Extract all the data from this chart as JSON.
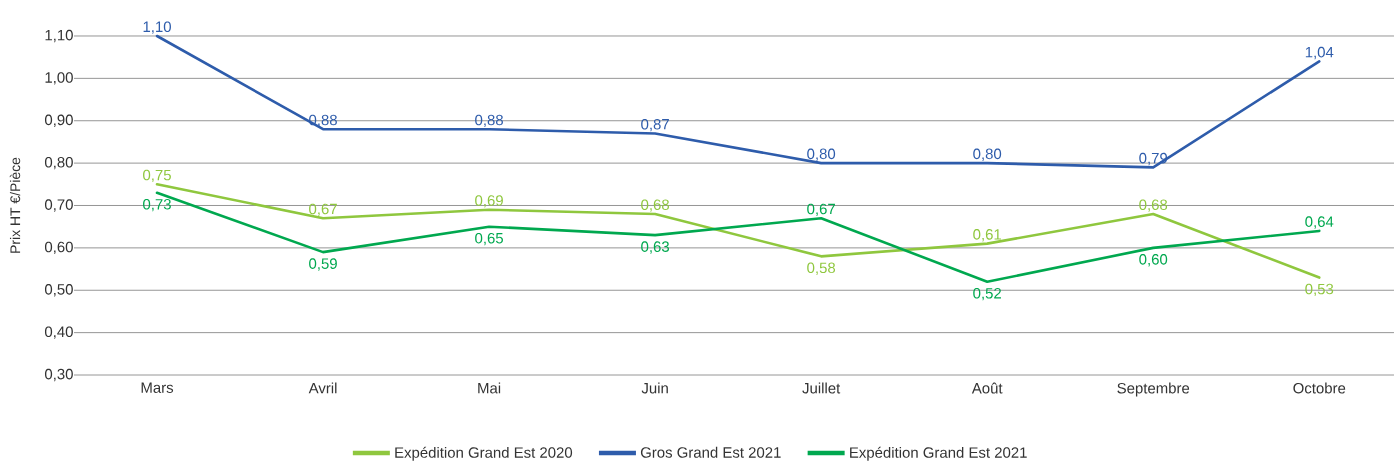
{
  "chart_data": {
    "type": "line",
    "ylabel": "Prix HT €/Pièce",
    "categories": [
      "Mars",
      "Avril",
      "Mai",
      "Juin",
      "Juillet",
      "Août",
      "Septembre",
      "Octobre"
    ],
    "series": [
      {
        "name": "Expédition Grand Est 2020",
        "color": "#8fc73e",
        "values": [
          0.75,
          0.67,
          0.69,
          0.68,
          0.58,
          0.61,
          0.68,
          0.53
        ],
        "value_labels": [
          "0,75",
          "0,67",
          "0,69",
          "0,68",
          "0,58",
          "0,61",
          "0,68",
          "0,53"
        ]
      },
      {
        "name": "Gros Grand Est 2021",
        "color": "#2e5cab",
        "values": [
          1.1,
          0.88,
          0.88,
          0.87,
          0.8,
          0.8,
          0.79,
          1.04
        ],
        "value_labels": [
          "1,10",
          "0,88",
          "0,88",
          "0,87",
          "0,80",
          "0,80",
          "0,79",
          "1,04"
        ]
      },
      {
        "name": "Expédition Grand Est 2021",
        "color": "#00a84f",
        "values": [
          0.73,
          0.59,
          0.65,
          0.63,
          0.67,
          0.52,
          0.6,
          0.64
        ],
        "value_labels": [
          "0,73",
          "0,59",
          "0,65",
          "0,63",
          "0,67",
          "0,52",
          "0,60",
          "0,64"
        ]
      }
    ],
    "ylim": [
      0.3,
      1.1
    ],
    "yticks": [
      {
        "value": 0.3,
        "label": "0,30"
      },
      {
        "value": 0.4,
        "label": "0,40"
      },
      {
        "value": 0.5,
        "label": "0,50"
      },
      {
        "value": 0.6,
        "label": "0,60"
      },
      {
        "value": 0.7,
        "label": "0,70"
      },
      {
        "value": 0.8,
        "label": "0,80"
      },
      {
        "value": 0.9,
        "label": "0,90"
      },
      {
        "value": 1.0,
        "label": "1,00"
      },
      {
        "value": 1.1,
        "label": "1,10"
      }
    ],
    "grid": "y",
    "legend": "bottom",
    "marker": "none"
  }
}
